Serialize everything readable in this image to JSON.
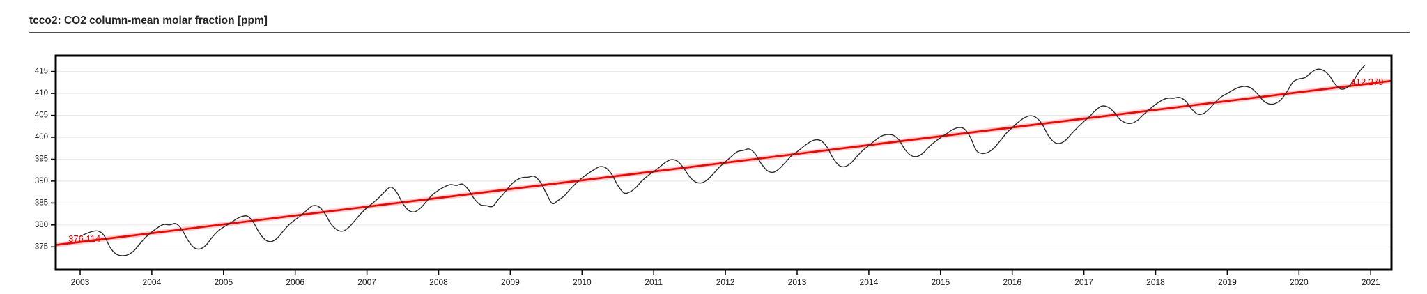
{
  "chart_data": {
    "type": "line",
    "title": "tcco2: CO2 column-mean molar fraction [ppm]",
    "xlabel": "",
    "ylabel": "",
    "grid": "horizontal-only",
    "legend": "none",
    "x_domain": [
      2002.66,
      2021.29
    ],
    "y_domain": [
      369.8,
      418.6
    ],
    "x_ticks": [
      2003,
      2004,
      2005,
      2006,
      2007,
      2008,
      2009,
      2010,
      2011,
      2012,
      2013,
      2014,
      2015,
      2016,
      2017,
      2018,
      2019,
      2020,
      2021
    ],
    "y_ticks": [
      375,
      380,
      385,
      390,
      395,
      400,
      405,
      410,
      415
    ],
    "colors": {
      "series": "#2b2b2b",
      "trend": "#ff0000",
      "grid": "#ebebeb",
      "border": "#000000",
      "tick_label": "#1a1a1a"
    },
    "series": [
      {
        "name": "tcco2-monthly-mean",
        "color": "#2b2b2b",
        "monthly_start_year": 2003,
        "values_by_year": [
          [
            377.4,
            378.0,
            378.5,
            378.6,
            377.6,
            374.9,
            373.4,
            373.0,
            373.2,
            374.1,
            375.7,
            377.2
          ],
          [
            378.4,
            379.4,
            380.1,
            380.0,
            380.3,
            379.0,
            376.6,
            374.9,
            374.5,
            375.3,
            377.0,
            378.5
          ],
          [
            379.5,
            380.3,
            381.2,
            381.9,
            382.0,
            380.6,
            378.2,
            376.6,
            376.2,
            377.0,
            378.6,
            380.1
          ],
          [
            381.2,
            382.2,
            383.4,
            384.4,
            384.1,
            382.5,
            380.2,
            378.9,
            378.6,
            379.5,
            381.0,
            382.6
          ],
          [
            383.9,
            385.0,
            386.2,
            387.6,
            388.6,
            387.4,
            384.9,
            383.3,
            383.0,
            383.9,
            385.4,
            386.9
          ],
          [
            387.9,
            388.7,
            389.2,
            389.0,
            389.3,
            388.0,
            385.9,
            384.6,
            384.4,
            384.2,
            385.8,
            387.3
          ],
          [
            389.0,
            390.2,
            390.8,
            390.9,
            391.1,
            389.8,
            387.3,
            384.9,
            385.6,
            386.6,
            388.1,
            389.5
          ],
          [
            390.7,
            391.7,
            392.6,
            393.3,
            393.0,
            391.5,
            389.0,
            387.3,
            387.5,
            388.5,
            390.0,
            391.2
          ],
          [
            392.2,
            393.2,
            394.3,
            394.9,
            394.5,
            393.0,
            391.0,
            389.8,
            389.6,
            390.3,
            391.7,
            393.2
          ],
          [
            394.4,
            395.6,
            396.7,
            397.0,
            397.3,
            396.2,
            394.0,
            392.4,
            392.0,
            392.8,
            394.2,
            395.7
          ],
          [
            396.7,
            397.8,
            398.8,
            399.4,
            399.2,
            397.8,
            395.3,
            393.6,
            393.3,
            394.1,
            395.6,
            397.0
          ],
          [
            398.1,
            399.2,
            400.2,
            400.6,
            400.5,
            399.5,
            397.3,
            395.9,
            395.6,
            396.3,
            397.7,
            398.9
          ],
          [
            399.9,
            400.8,
            401.7,
            402.2,
            401.9,
            400.0,
            397.0,
            396.3,
            396.6,
            397.6,
            399.2,
            400.9
          ],
          [
            402.2,
            403.4,
            404.4,
            404.9,
            404.5,
            403.0,
            400.5,
            398.9,
            398.6,
            399.4,
            400.9,
            402.3
          ],
          [
            403.6,
            404.8,
            406.2,
            407.1,
            406.9,
            405.8,
            404.1,
            403.3,
            403.2,
            403.9,
            405.2,
            406.4
          ],
          [
            407.5,
            408.4,
            408.9,
            408.9,
            409.1,
            408.3,
            406.5,
            405.3,
            405.4,
            406.5,
            408.0,
            409.2
          ],
          [
            410.0,
            410.8,
            411.4,
            411.6,
            411.2,
            410.0,
            408.4,
            407.6,
            407.7,
            408.6,
            410.4,
            412.6
          ],
          [
            413.3,
            413.6,
            414.7,
            415.5,
            415.3,
            414.2,
            412.2,
            411.0,
            411.3,
            412.6,
            414.8,
            416.4
          ]
        ]
      },
      {
        "name": "linear-trend-fit",
        "color": "#ff0000",
        "points": [
          [
            2003.0,
            376.114
          ],
          [
            2021.0,
            412.279
          ]
        ],
        "extend_to_x_domain": true
      }
    ],
    "annotations": [
      {
        "name": "trend-start-label",
        "text": "376.114",
        "t": 2003.06,
        "v": 376.87,
        "color": "#f40000"
      },
      {
        "name": "trend-end-label",
        "text": "412.279",
        "t": 2020.95,
        "v": 412.65,
        "color": "#f40000"
      }
    ]
  }
}
